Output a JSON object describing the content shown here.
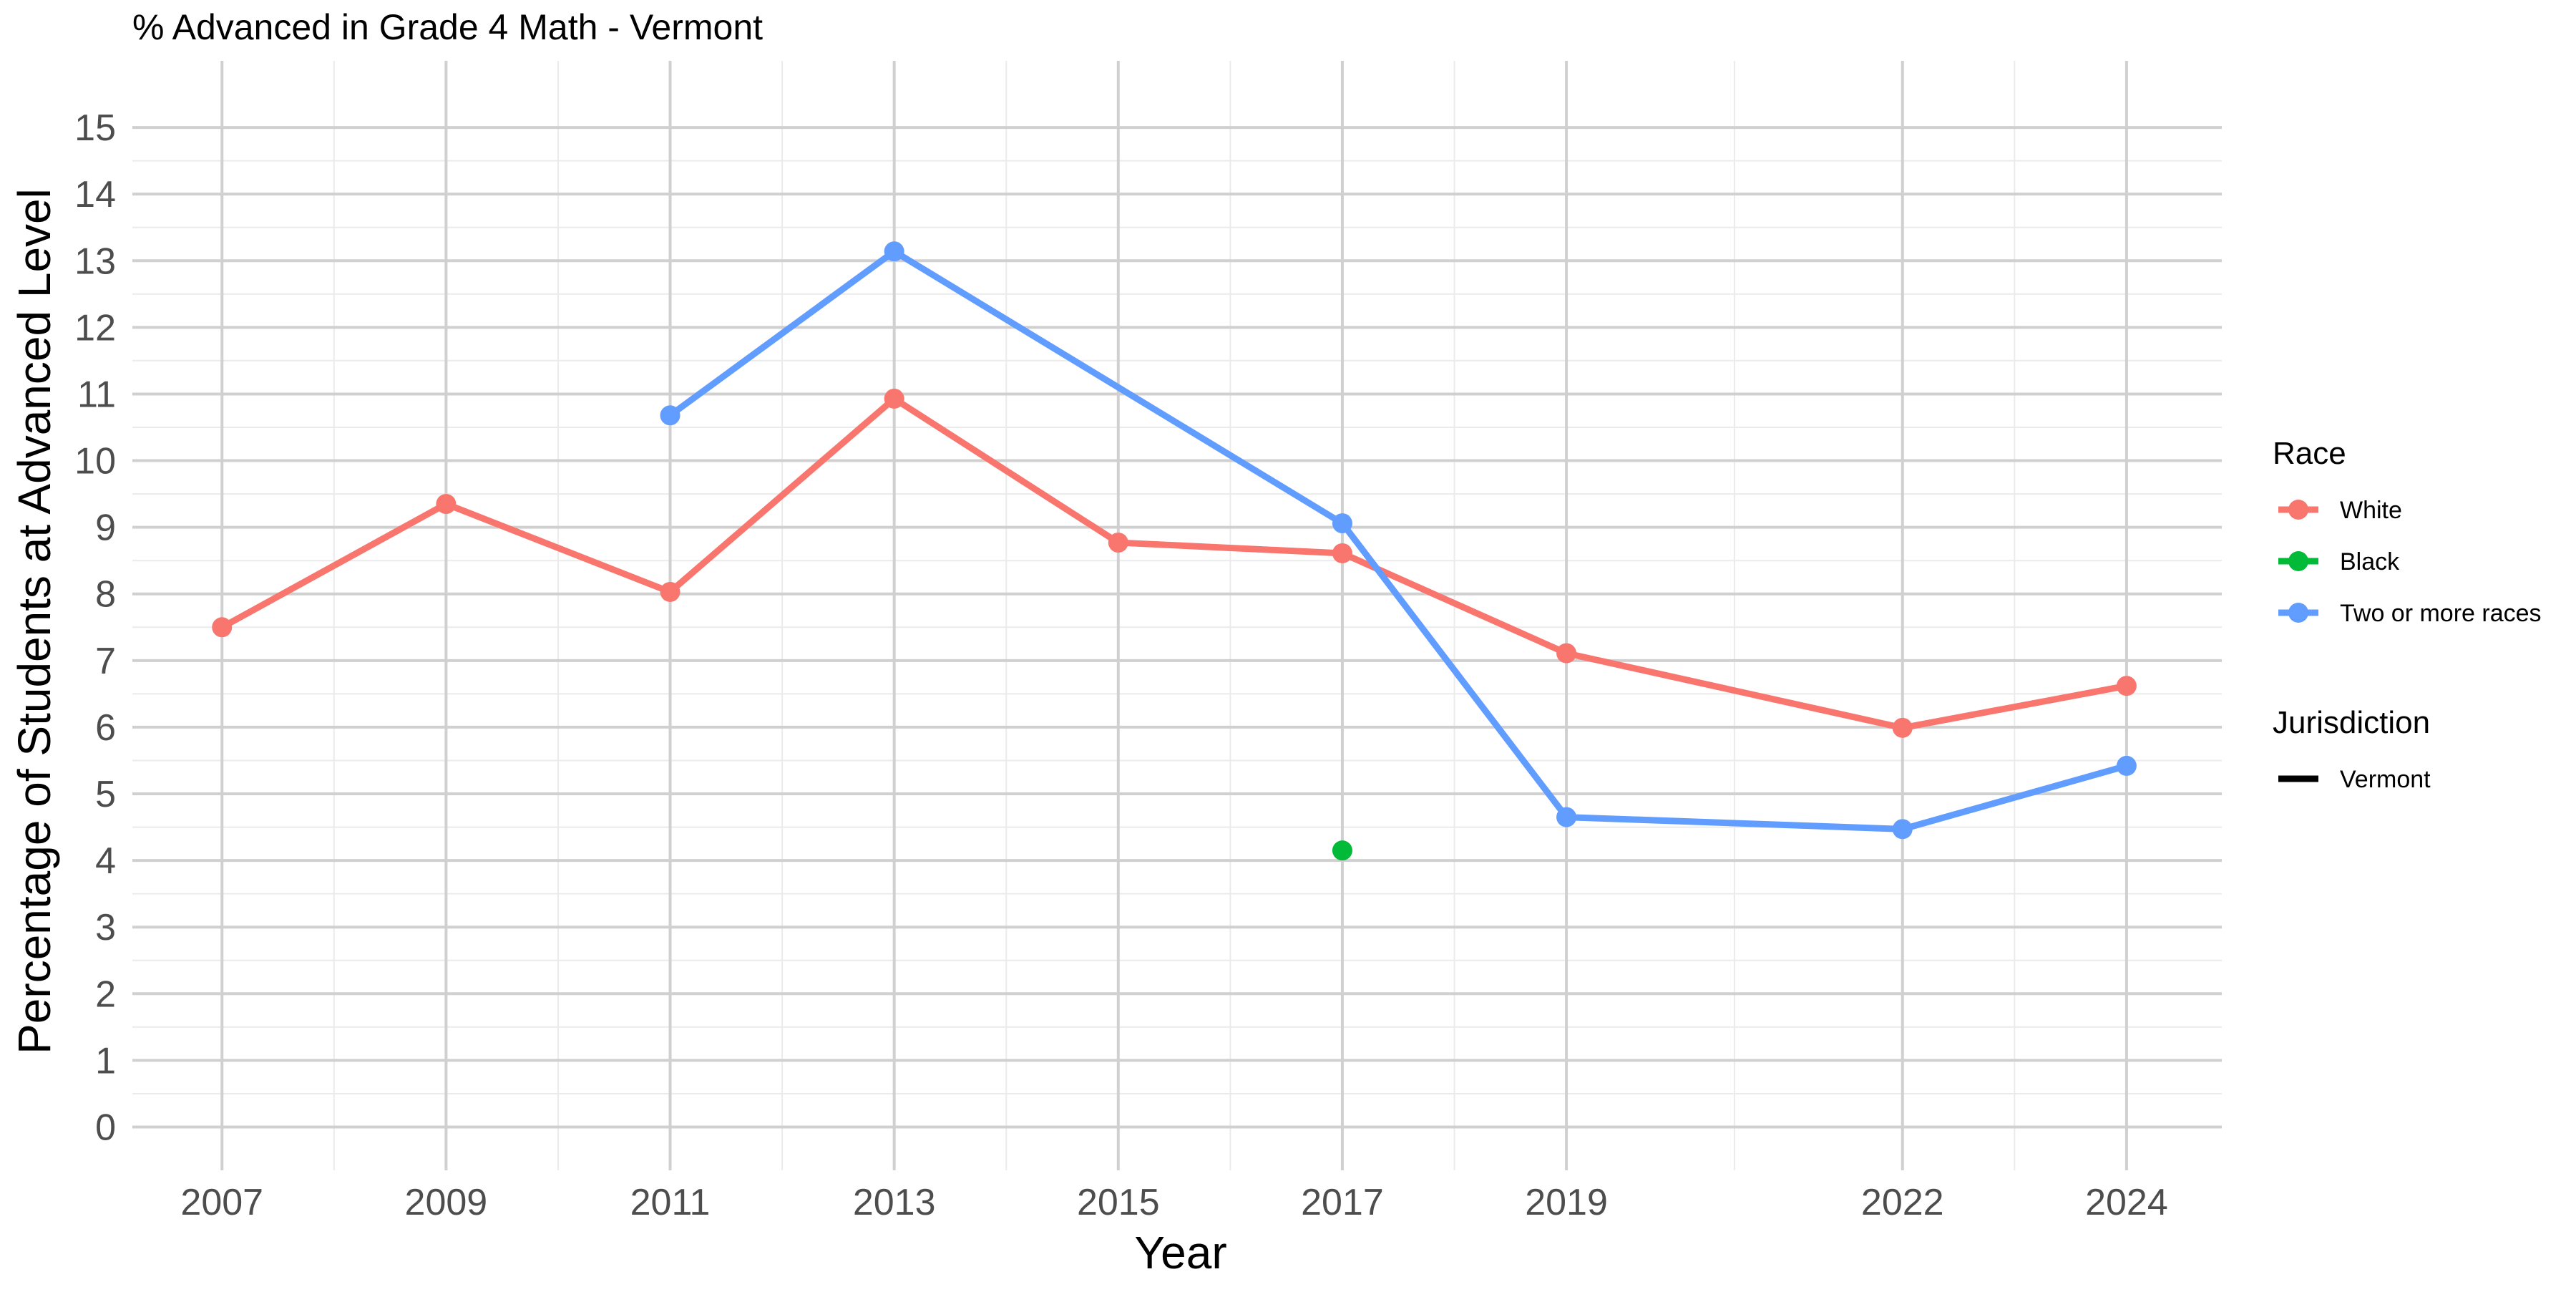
{
  "chart_data": {
    "type": "line",
    "title": "% Advanced in Grade 4 Math - Vermont",
    "xlabel": "Year",
    "ylabel": "Percentage of Students at Advanced Level",
    "x_ticks": [
      2007,
      2009,
      2011,
      2013,
      2015,
      2017,
      2019,
      2022,
      2024
    ],
    "y_ticks": [
      0,
      1,
      2,
      3,
      4,
      5,
      6,
      7,
      8,
      9,
      10,
      11,
      12,
      13,
      14,
      15
    ],
    "xlim": [
      2006.2,
      2024.85
    ],
    "ylim": [
      -0.65,
      16.0
    ],
    "grid": true,
    "legend_position": "right",
    "legends": {
      "race": {
        "title": "Race",
        "entries": [
          {
            "label": "White",
            "color": "#F8766D"
          },
          {
            "label": "Black",
            "color": "#00BA38"
          },
          {
            "label": "Two or more races",
            "color": "#619CFF"
          }
        ]
      },
      "jurisdiction": {
        "title": "Jurisdiction",
        "entries": [
          {
            "label": "Vermont",
            "color": "#000000"
          }
        ]
      }
    },
    "series": [
      {
        "name": "White",
        "color": "#F8766D",
        "x": [
          2007,
          2009,
          2011,
          2013,
          2015,
          2017,
          2019,
          2022,
          2024
        ],
        "y": [
          7.5,
          9.35,
          8.03,
          10.93,
          8.77,
          8.61,
          7.11,
          5.99,
          6.62
        ]
      },
      {
        "name": "Black",
        "color": "#00BA38",
        "x": [
          2017
        ],
        "y": [
          4.15
        ]
      },
      {
        "name": "Two or more races",
        "color": "#619CFF",
        "x": [
          2011,
          2013,
          2017,
          2019,
          2022,
          2024
        ],
        "y": [
          10.68,
          13.14,
          9.06,
          4.65,
          4.47,
          5.42
        ]
      }
    ]
  }
}
